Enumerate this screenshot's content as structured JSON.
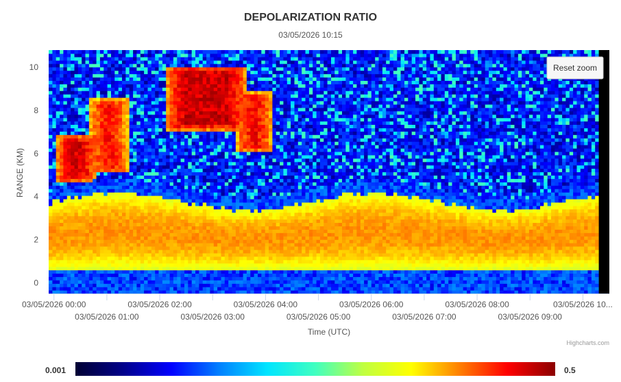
{
  "chart_data": {
    "type": "heatmap",
    "title": "DEPOLARIZATION RATIO",
    "subtitle": "03/05/2026 10:15",
    "xlabel": "Time (UTC)",
    "ylabel": "RANGE (KM)",
    "x_tick_labels": [
      "03/05/2026 00:00",
      "03/05/2026 01:00",
      "03/05/2026 02:00",
      "03/05/2026 03:00",
      "03/05/2026 04:00",
      "03/05/2026 05:00",
      "03/05/2026 06:00",
      "03/05/2026 07:00",
      "03/05/2026 08:00",
      "03/05/2026 09:00",
      "03/05/2026 10..."
    ],
    "x_hours": [
      0,
      1,
      2,
      3,
      4,
      5,
      6,
      7,
      8,
      9,
      10
    ],
    "xlim_hours": [
      -0.1,
      10.5
    ],
    "y_ticks": [
      0,
      2,
      4,
      6,
      8,
      10
    ],
    "ylim": [
      -0.5,
      10.8
    ],
    "colorscale": {
      "min_label": "0.001",
      "max_label": "0.5",
      "min": 0.001,
      "max": 0.5,
      "colors": [
        "#000033",
        "#00008b",
        "#0000ff",
        "#0080ff",
        "#00e5ff",
        "#40ffc0",
        "#c0ff40",
        "#ffff00",
        "#ff8000",
        "#ff0000",
        "#8b0000"
      ]
    },
    "legend": "bottom",
    "grid": false,
    "features": {
      "boundary_layer": {
        "bottom_km": 0.6,
        "top_km": 3.6,
        "approx_ratio": 0.12
      },
      "surface_layer": {
        "bottom_km": -0.4,
        "top_km": 0.5,
        "approx_ratio": 0.005
      },
      "cirrus_clouds": [
        {
          "t_start_hours": 0.0,
          "t_end_hours": 0.8,
          "bottom_km": 4.6,
          "top_km": 6.8,
          "approx_ratio": 0.4
        },
        {
          "t_start_hours": 0.6,
          "t_end_hours": 1.4,
          "bottom_km": 5.0,
          "top_km": 8.5,
          "approx_ratio": 0.3
        },
        {
          "t_start_hours": 2.1,
          "t_end_hours": 3.6,
          "bottom_km": 7.0,
          "top_km": 10.0,
          "approx_ratio": 0.42
        },
        {
          "t_start_hours": 3.4,
          "t_end_hours": 4.1,
          "bottom_km": 6.0,
          "top_km": 8.8,
          "approx_ratio": 0.35
        },
        {
          "t_start_hours": 5.1,
          "t_end_hours": 5.5,
          "bottom_km": 3.2,
          "top_km": 3.6,
          "approx_ratio": 0.35
        }
      ]
    }
  },
  "ui": {
    "reset_zoom_label": "Reset zoom",
    "credits": "Highcharts.com"
  }
}
